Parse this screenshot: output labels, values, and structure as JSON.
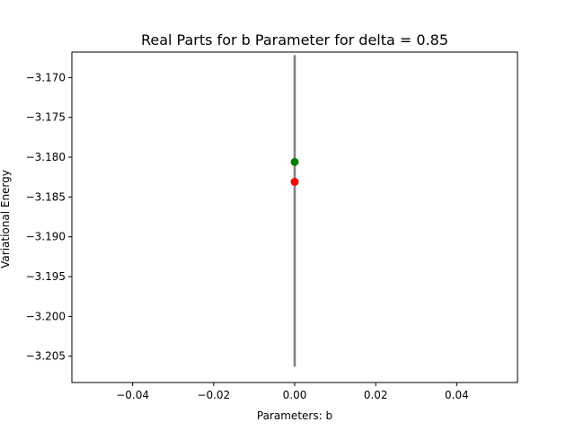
{
  "chart_data": {
    "type": "scatter",
    "title": "Real Parts for b Parameter for delta = 0.85",
    "xlabel": "Parameters: b",
    "ylabel": "Variational Energy",
    "xlim": [
      -0.055,
      0.055
    ],
    "ylim": [
      -3.2083,
      -3.1668
    ],
    "x_ticks": [
      -0.04,
      -0.02,
      0.0,
      0.02,
      0.04
    ],
    "x_tick_labels": [
      "−0.04",
      "−0.02",
      "0.00",
      "0.02",
      "0.04"
    ],
    "y_ticks": [
      -3.17,
      -3.175,
      -3.18,
      -3.185,
      -3.19,
      -3.195,
      -3.2,
      -3.205
    ],
    "y_tick_labels": [
      "−3.170",
      "−3.175",
      "−3.180",
      "−3.185",
      "−3.190",
      "−3.195",
      "−3.200",
      "−3.205"
    ],
    "grid": false,
    "series": [
      {
        "type": "errorbar",
        "color": "#808080",
        "x": 0.0,
        "y_low": -3.2062,
        "y_high": -3.1673
      },
      {
        "type": "point",
        "color": "#008000",
        "x": 0.0,
        "y": -3.1806
      },
      {
        "type": "point",
        "color": "#ff0000",
        "x": 0.0,
        "y": -3.1831
      }
    ]
  }
}
